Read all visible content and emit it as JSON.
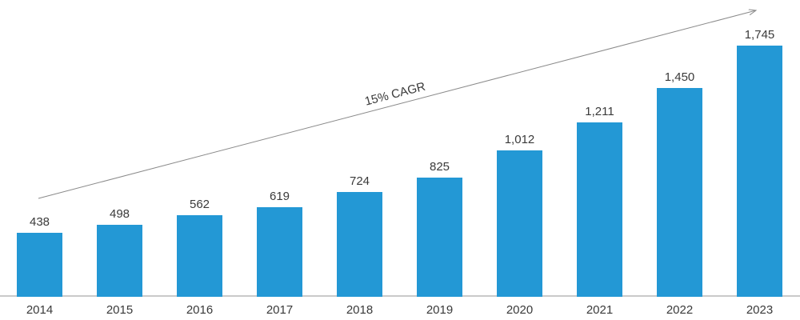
{
  "chart_data": {
    "type": "bar",
    "categories": [
      "2014",
      "2015",
      "2016",
      "2017",
      "2018",
      "2019",
      "2020",
      "2021",
      "2022",
      "2023"
    ],
    "values": [
      438,
      498,
      562,
      619,
      724,
      825,
      1012,
      1211,
      1450,
      1745
    ],
    "value_labels": [
      "438",
      "498",
      "562",
      "619",
      "724",
      "825",
      "1,012",
      "1,211",
      "1,450",
      "1,745"
    ],
    "title": "",
    "xlabel": "",
    "ylabel": "",
    "ylim": [
      0,
      1900
    ],
    "grid": false,
    "legend": "none",
    "annotation": {
      "text": "15% CAGR"
    },
    "colors": {
      "bar": "#2398d5",
      "axis_line": "#c9c9c9",
      "arrow": "#8a8a8a",
      "label_text": "#3a3a3a"
    }
  }
}
